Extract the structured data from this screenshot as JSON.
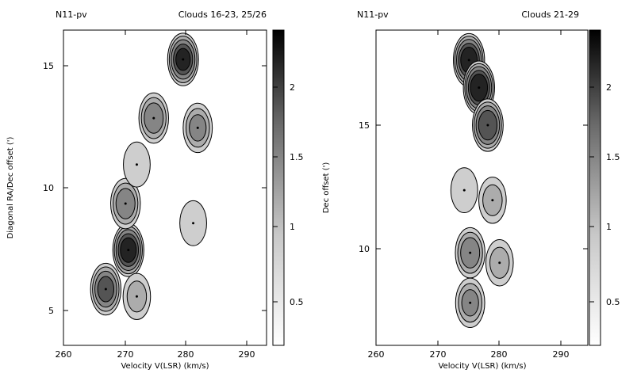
{
  "panels": [
    {
      "label": "N11-pv",
      "title": "Clouds 16-23, 25/26",
      "xlabel": "Velocity V(LSR) (km/s)",
      "ylabel": "Diagonal RA/Dec offset (')",
      "x_ticks": [
        "260",
        "270",
        "280",
        "290"
      ],
      "y_ticks": [
        "5",
        "10",
        "15"
      ],
      "colorbar_ticks": [
        "0.5",
        "1",
        "1.5",
        "2"
      ]
    },
    {
      "label": "N11-pv",
      "title": "Clouds 21-29",
      "xlabel": "Velocity V(LSR) (km/s)",
      "ylabel": "Dec offset (')",
      "x_ticks": [
        "260",
        "270",
        "280",
        "290"
      ],
      "y_ticks": [
        "10",
        "15"
      ],
      "colorbar_ticks": [
        "0.5",
        "1",
        "1.5",
        "2"
      ]
    }
  ],
  "chart_data": [
    {
      "type": "heatmap",
      "title": "Clouds 16-23, 25/26",
      "xlabel": "Velocity V(LSR) (km/s)",
      "ylabel": "Diagonal RA/Dec offset (')",
      "xlim": [
        260,
        296
      ],
      "ylim": [
        3.6,
        16.5
      ],
      "colorbar_range": [
        0.1,
        2.4
      ],
      "colorbar_ticks": [
        0.5,
        1,
        1.5,
        2
      ],
      "colormap": "white-to-black",
      "peaks": [
        {
          "x": 271.5,
          "y": 7.5,
          "value": 2.2
        },
        {
          "x": 267.5,
          "y": 5.9,
          "value": 1.6
        },
        {
          "x": 271.0,
          "y": 9.4,
          "value": 1.2
        },
        {
          "x": 276.0,
          "y": 12.9,
          "value": 1.2
        },
        {
          "x": 281.2,
          "y": 15.3,
          "value": 2.0
        },
        {
          "x": 283.8,
          "y": 12.5,
          "value": 1.0
        },
        {
          "x": 273.0,
          "y": 5.6,
          "value": 0.6
        },
        {
          "x": 283.0,
          "y": 8.6,
          "value": 0.5
        },
        {
          "x": 273.0,
          "y": 11.0,
          "value": 0.5
        }
      ]
    },
    {
      "type": "heatmap",
      "title": "Clouds 21-29",
      "xlabel": "Velocity V(LSR) (km/s)",
      "ylabel": "Dec offset (')",
      "xlim": [
        260,
        296
      ],
      "ylim": [
        6,
        18.6
      ],
      "colorbar_range": [
        0.1,
        2.4
      ],
      "colorbar_ticks": [
        0.5,
        1,
        1.5,
        2
      ],
      "colormap": "white-to-black",
      "peaks": [
        {
          "x": 275.8,
          "y": 17.4,
          "value": 2.3
        },
        {
          "x": 277.5,
          "y": 16.3,
          "value": 2.4
        },
        {
          "x": 279.0,
          "y": 14.8,
          "value": 1.9
        },
        {
          "x": 276.0,
          "y": 9.7,
          "value": 1.2
        },
        {
          "x": 276.0,
          "y": 7.7,
          "value": 1.0
        },
        {
          "x": 279.8,
          "y": 11.8,
          "value": 0.6
        },
        {
          "x": 275.0,
          "y": 12.2,
          "value": 0.5
        },
        {
          "x": 281.0,
          "y": 9.3,
          "value": 0.6
        }
      ]
    }
  ]
}
